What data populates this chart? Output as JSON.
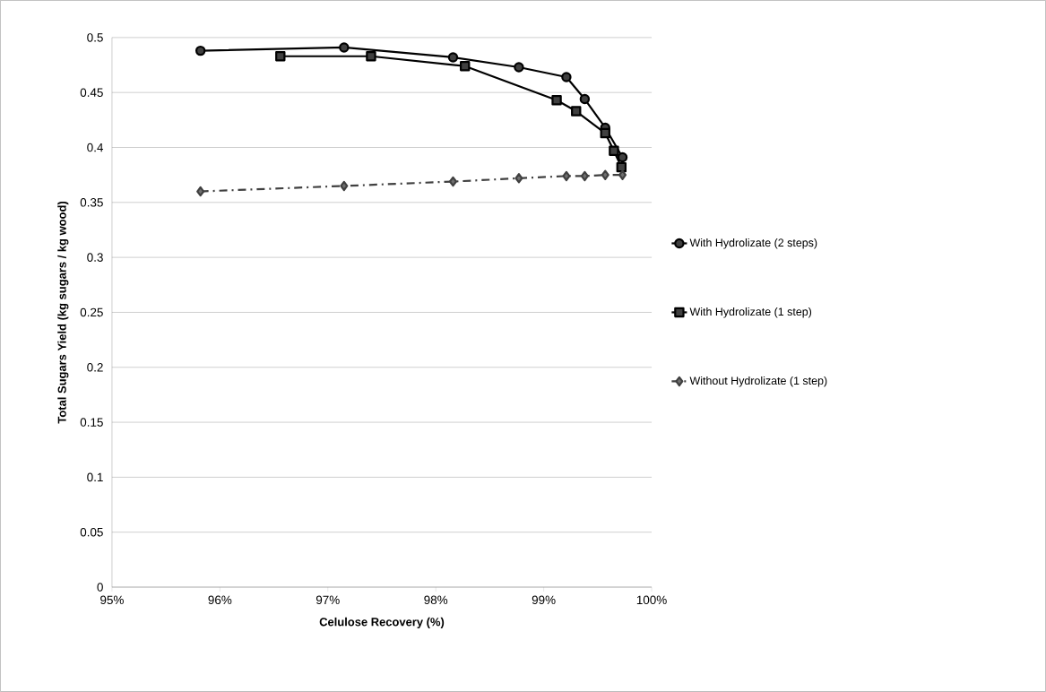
{
  "chart_data": {
    "type": "line",
    "xlabel": "Celulose Recovery (%)",
    "ylabel": "Total Sugars Yield (kg sugars / kg wood)",
    "xlim": [
      95,
      100
    ],
    "ylim": [
      0,
      0.5
    ],
    "xticks": [
      {
        "value": 95,
        "label": "95%"
      },
      {
        "value": 96,
        "label": "96%"
      },
      {
        "value": 97,
        "label": "97%"
      },
      {
        "value": 98,
        "label": "98%"
      },
      {
        "value": 99,
        "label": "99%"
      },
      {
        "value": 100,
        "label": "100%"
      }
    ],
    "yticks": [
      0,
      0.05,
      0.1,
      0.15,
      0.2,
      0.25,
      0.3,
      0.35,
      0.4,
      0.45,
      0.5
    ],
    "grid": "y",
    "legend": "right",
    "series": [
      {
        "name": "With Hydrolizate (2 steps)",
        "color": "#000000",
        "marker": "circle",
        "line_style": "solid",
        "x": [
          95.82,
          97.15,
          98.16,
          98.77,
          99.21,
          99.38,
          99.57,
          99.73
        ],
        "values": [
          0.488,
          0.491,
          0.482,
          0.473,
          0.464,
          0.444,
          0.418,
          0.391
        ]
      },
      {
        "name": "With Hydrolizate (1 step)",
        "color": "#000000",
        "marker": "square",
        "line_style": "solid",
        "x": [
          96.56,
          97.4,
          98.27,
          99.12,
          99.3,
          99.57,
          99.65,
          99.72
        ],
        "values": [
          0.483,
          0.483,
          0.474,
          0.443,
          0.433,
          0.413,
          0.397,
          0.382
        ]
      },
      {
        "name": "Without Hydrolizate (1 step)",
        "color": "#404040",
        "marker": "diamond",
        "line_style": "dashed",
        "x": [
          95.82,
          97.15,
          98.16,
          98.77,
          99.21,
          99.38,
          99.57,
          99.73
        ],
        "values": [
          0.36,
          0.365,
          0.369,
          0.372,
          0.374,
          0.374,
          0.375,
          0.375
        ]
      }
    ]
  }
}
